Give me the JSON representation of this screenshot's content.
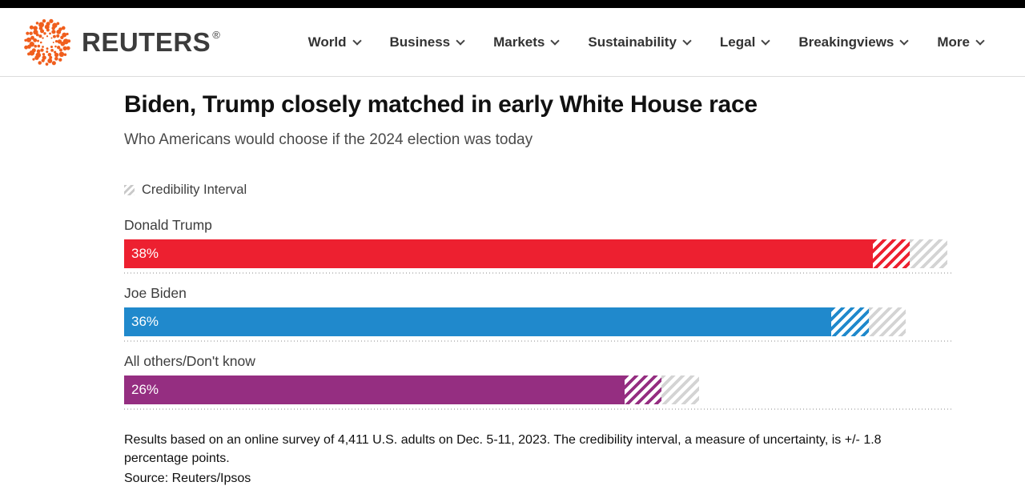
{
  "header": {
    "brand": "REUTERS",
    "registered": "®",
    "nav": [
      {
        "label": "World"
      },
      {
        "label": "Business"
      },
      {
        "label": "Markets"
      },
      {
        "label": "Sustainability"
      },
      {
        "label": "Legal"
      },
      {
        "label": "Breakingviews"
      },
      {
        "label": "More"
      }
    ]
  },
  "article": {
    "title": "Biden, Trump closely matched in early White House race",
    "subtitle": "Who Americans would choose if the 2024 election was today"
  },
  "chart_data": {
    "type": "bar",
    "orientation": "horizontal",
    "legend_label": "Credibility Interval",
    "legend_position": "top-left",
    "categories": [
      "Donald Trump",
      "Joe Biden",
      "All others/Don't know"
    ],
    "values": [
      38,
      36,
      26
    ],
    "value_labels": [
      "38%",
      "36%",
      "26%"
    ],
    "credibility_interval_pct": 1.8,
    "x_max_pct": 40,
    "bar_colors": [
      "#ed2030",
      "#2089cc",
      "#952e81"
    ],
    "hatch_gray": "#d4d4d4",
    "gridline_style": "dotted baseline under each bar"
  },
  "footnote": {
    "text": "Results based on an online survey of 4,411 U.S. adults on Dec. 5-11, 2023. The credibility interval, a measure of uncertainty, is +/- 1.8 percentage points.",
    "source": "Source: Reuters/Ipsos"
  },
  "colors": {
    "logo_orange": "#f05e1d",
    "brand_text": "#3c3c3c",
    "nav_text": "#333333",
    "topbar": "#000000",
    "header_border": "#dcdcdc"
  }
}
